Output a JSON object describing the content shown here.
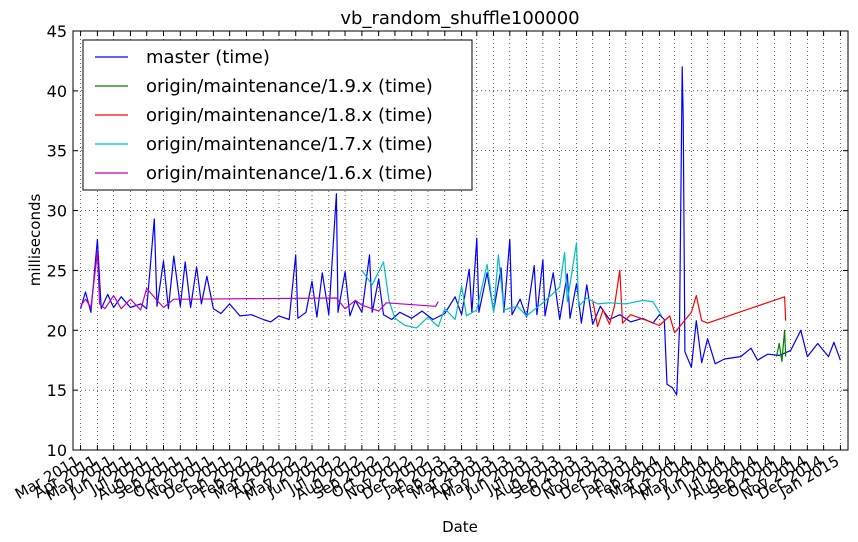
{
  "chart_data": {
    "type": "line",
    "title": "vb_random_shuffle100000",
    "xlabel": "Date",
    "ylabel": "milliseconds",
    "ylim": [
      10,
      45
    ],
    "xlim": [
      "2011-02-15",
      "2015-01-15"
    ],
    "y_ticks": [
      10,
      15,
      20,
      25,
      30,
      35,
      40,
      45
    ],
    "x_ticks": [
      {
        "date": "2011-03-01",
        "label": "Mar 2011"
      },
      {
        "date": "2011-04-01",
        "label": "Apr 2011"
      },
      {
        "date": "2011-05-01",
        "label": "May 2011"
      },
      {
        "date": "2011-06-01",
        "label": "Jun 2011"
      },
      {
        "date": "2011-07-01",
        "label": "Jul 2011"
      },
      {
        "date": "2011-08-01",
        "label": "Aug 2011"
      },
      {
        "date": "2011-09-01",
        "label": "Sep 2011"
      },
      {
        "date": "2011-10-01",
        "label": "Oct 2011"
      },
      {
        "date": "2011-11-01",
        "label": "Nov 2011"
      },
      {
        "date": "2011-12-01",
        "label": "Dec 2011"
      },
      {
        "date": "2012-01-01",
        "label": "Jan 2012"
      },
      {
        "date": "2012-02-01",
        "label": "Feb 2012"
      },
      {
        "date": "2012-03-01",
        "label": "Mar 2012"
      },
      {
        "date": "2012-04-01",
        "label": "Apr 2012"
      },
      {
        "date": "2012-05-01",
        "label": "May 2012"
      },
      {
        "date": "2012-06-01",
        "label": "Jun 2012"
      },
      {
        "date": "2012-07-01",
        "label": "Jul 2012"
      },
      {
        "date": "2012-08-01",
        "label": "Aug 2012"
      },
      {
        "date": "2012-09-01",
        "label": "Sep 2012"
      },
      {
        "date": "2012-10-01",
        "label": "Oct 2012"
      },
      {
        "date": "2012-11-01",
        "label": "Nov 2012"
      },
      {
        "date": "2012-12-01",
        "label": "Dec 2012"
      },
      {
        "date": "2013-01-01",
        "label": "Jan 2013"
      },
      {
        "date": "2013-02-01",
        "label": "Feb 2013"
      },
      {
        "date": "2013-03-01",
        "label": "Mar 2013"
      },
      {
        "date": "2013-04-01",
        "label": "Apr 2013"
      },
      {
        "date": "2013-05-01",
        "label": "May 2013"
      },
      {
        "date": "2013-06-01",
        "label": "Jun 2013"
      },
      {
        "date": "2013-07-01",
        "label": "Jul 2013"
      },
      {
        "date": "2013-08-01",
        "label": "Aug 2013"
      },
      {
        "date": "2013-09-01",
        "label": "Sep 2013"
      },
      {
        "date": "2013-10-01",
        "label": "Oct 2013"
      },
      {
        "date": "2013-11-01",
        "label": "Nov 2013"
      },
      {
        "date": "2013-12-01",
        "label": "Dec 2013"
      },
      {
        "date": "2014-01-01",
        "label": "Jan 2014"
      },
      {
        "date": "2014-02-01",
        "label": "Feb 2014"
      },
      {
        "date": "2014-03-01",
        "label": "Mar 2014"
      },
      {
        "date": "2014-04-01",
        "label": "Apr 2014"
      },
      {
        "date": "2014-05-01",
        "label": "May 2014"
      },
      {
        "date": "2014-06-01",
        "label": "Jun 2014"
      },
      {
        "date": "2014-07-01",
        "label": "Jul 2014"
      },
      {
        "date": "2014-08-01",
        "label": "Aug 2014"
      },
      {
        "date": "2014-09-01",
        "label": "Sep 2014"
      },
      {
        "date": "2014-10-01",
        "label": "Oct 2014"
      },
      {
        "date": "2014-11-01",
        "label": "Nov 2014"
      },
      {
        "date": "2014-12-01",
        "label": "Dec 2014"
      },
      {
        "date": "2015-01-01",
        "label": "Jan 2015"
      }
    ],
    "grid": true,
    "legend_position": "top-left",
    "series": [
      {
        "name": "master (time)",
        "color": "#0000ff",
        "points": [
          [
            "2011-03-01",
            21.8
          ],
          [
            "2011-03-10",
            23.2
          ],
          [
            "2011-03-20",
            21.5
          ],
          [
            "2011-04-01",
            27.6
          ],
          [
            "2011-04-08",
            21.8
          ],
          [
            "2011-04-20",
            23.0
          ],
          [
            "2011-05-01",
            21.9
          ],
          [
            "2011-05-15",
            22.8
          ],
          [
            "2011-06-01",
            21.9
          ],
          [
            "2011-06-20",
            22.2
          ],
          [
            "2011-07-01",
            21.8
          ],
          [
            "2011-07-15",
            29.3
          ],
          [
            "2011-07-20",
            22.0
          ],
          [
            "2011-08-01",
            25.8
          ],
          [
            "2011-08-10",
            21.8
          ],
          [
            "2011-08-20",
            26.2
          ],
          [
            "2011-09-01",
            22.0
          ],
          [
            "2011-09-10",
            25.7
          ],
          [
            "2011-09-20",
            21.9
          ],
          [
            "2011-10-01",
            25.3
          ],
          [
            "2011-10-10",
            22.2
          ],
          [
            "2011-10-20",
            24.5
          ],
          [
            "2011-11-01",
            21.8
          ],
          [
            "2011-11-15",
            21.4
          ],
          [
            "2011-12-01",
            22.2
          ],
          [
            "2011-12-20",
            21.2
          ],
          [
            "2012-01-10",
            21.3
          ],
          [
            "2012-02-01",
            20.9
          ],
          [
            "2012-02-15",
            20.7
          ],
          [
            "2012-03-01",
            21.2
          ],
          [
            "2012-03-20",
            20.9
          ],
          [
            "2012-04-01",
            26.3
          ],
          [
            "2012-04-05",
            21.0
          ],
          [
            "2012-04-20",
            21.5
          ],
          [
            "2012-05-01",
            24.1
          ],
          [
            "2012-05-10",
            21.1
          ],
          [
            "2012-05-20",
            24.8
          ],
          [
            "2012-06-01",
            21.3
          ],
          [
            "2012-06-15",
            31.4
          ],
          [
            "2012-06-18",
            21.5
          ],
          [
            "2012-07-01",
            24.9
          ],
          [
            "2012-07-10",
            21.2
          ],
          [
            "2012-07-20",
            22.5
          ],
          [
            "2012-08-01",
            21.5
          ],
          [
            "2012-08-15",
            26.3
          ],
          [
            "2012-08-20",
            21.5
          ],
          [
            "2012-09-01",
            24.3
          ],
          [
            "2012-09-10",
            21.3
          ],
          [
            "2012-09-25",
            20.9
          ],
          [
            "2012-10-10",
            21.5
          ],
          [
            "2012-11-01",
            21.0
          ],
          [
            "2012-11-20",
            21.6
          ],
          [
            "2012-12-10",
            20.9
          ],
          [
            "2013-01-01",
            21.4
          ],
          [
            "2013-01-20",
            22.8
          ],
          [
            "2013-02-01",
            21.3
          ],
          [
            "2013-02-15",
            25.1
          ],
          [
            "2013-02-20",
            21.5
          ],
          [
            "2013-03-01",
            27.7
          ],
          [
            "2013-03-05",
            21.5
          ],
          [
            "2013-03-20",
            24.8
          ],
          [
            "2013-04-01",
            21.6
          ],
          [
            "2013-04-15",
            25.2
          ],
          [
            "2013-04-20",
            21.5
          ],
          [
            "2013-05-01",
            27.6
          ],
          [
            "2013-05-05",
            21.3
          ],
          [
            "2013-05-20",
            22.6
          ],
          [
            "2013-06-01",
            21.1
          ],
          [
            "2013-06-15",
            25.4
          ],
          [
            "2013-06-20",
            21.3
          ],
          [
            "2013-07-01",
            25.9
          ],
          [
            "2013-07-05",
            21.2
          ],
          [
            "2013-07-20",
            24.8
          ],
          [
            "2013-08-01",
            20.9
          ],
          [
            "2013-08-15",
            24.7
          ],
          [
            "2013-08-20",
            21.0
          ],
          [
            "2013-09-01",
            23.9
          ],
          [
            "2013-09-10",
            20.6
          ],
          [
            "2013-09-20",
            23.8
          ],
          [
            "2013-10-01",
            20.5
          ],
          [
            "2013-10-15",
            22.0
          ],
          [
            "2013-11-01",
            20.9
          ],
          [
            "2013-11-20",
            21.3
          ],
          [
            "2013-12-10",
            20.7
          ],
          [
            "2014-01-01",
            21.0
          ],
          [
            "2014-01-20",
            20.6
          ],
          [
            "2014-02-01",
            21.3
          ],
          [
            "2014-02-10",
            20.9
          ],
          [
            "2014-02-15",
            15.5
          ],
          [
            "2014-02-25",
            15.2
          ],
          [
            "2014-03-05",
            14.6
          ],
          [
            "2014-03-10",
            20.1
          ],
          [
            "2014-03-15",
            42.0
          ],
          [
            "2014-03-17",
            37.9
          ],
          [
            "2014-03-20",
            18.2
          ],
          [
            "2014-04-01",
            16.9
          ],
          [
            "2014-04-10",
            20.8
          ],
          [
            "2014-04-20",
            17.3
          ],
          [
            "2014-05-01",
            19.3
          ],
          [
            "2014-05-15",
            17.2
          ],
          [
            "2014-06-01",
            17.6
          ],
          [
            "2014-07-01",
            17.8
          ],
          [
            "2014-07-20",
            18.5
          ],
          [
            "2014-08-01",
            17.5
          ],
          [
            "2014-08-20",
            18.0
          ],
          [
            "2014-09-10",
            17.9
          ],
          [
            "2014-10-01",
            18.3
          ],
          [
            "2014-10-20",
            20.0
          ],
          [
            "2014-11-01",
            17.8
          ],
          [
            "2014-11-20",
            18.9
          ],
          [
            "2014-12-10",
            17.8
          ],
          [
            "2014-12-20",
            19.0
          ],
          [
            "2015-01-01",
            17.5
          ]
        ]
      },
      {
        "name": "origin/maintenance/1.9.x (time)",
        "color": "#008000",
        "points": [
          [
            "2014-09-05",
            17.8
          ],
          [
            "2014-09-10",
            18.9
          ],
          [
            "2014-09-15",
            17.4
          ],
          [
            "2014-09-20",
            20.0
          ],
          [
            "2014-09-22",
            17.8
          ]
        ]
      },
      {
        "name": "origin/maintenance/1.8.x (time)",
        "color": "#ff0000",
        "points": [
          [
            "2013-10-01",
            22.5
          ],
          [
            "2013-10-10",
            20.3
          ],
          [
            "2013-10-20",
            21.7
          ],
          [
            "2013-11-01",
            20.5
          ],
          [
            "2013-11-10",
            22.0
          ],
          [
            "2013-11-20",
            25.0
          ],
          [
            "2013-11-25",
            20.6
          ],
          [
            "2013-12-10",
            21.3
          ],
          [
            "2014-01-10",
            20.8
          ],
          [
            "2014-02-01",
            20.4
          ],
          [
            "2014-02-20",
            21.2
          ],
          [
            "2014-03-01",
            19.8
          ],
          [
            "2014-04-01",
            21.5
          ],
          [
            "2014-04-10",
            22.9
          ],
          [
            "2014-04-20",
            20.8
          ],
          [
            "2014-05-01",
            20.6
          ],
          [
            "2014-09-20",
            22.8
          ],
          [
            "2014-09-22",
            20.8
          ]
        ]
      },
      {
        "name": "origin/maintenance/1.7.x (time)",
        "color": "#00bfbf",
        "points": [
          [
            "2012-08-01",
            25.0
          ],
          [
            "2012-08-20",
            23.8
          ],
          [
            "2012-09-10",
            25.7
          ],
          [
            "2012-09-20",
            22.5
          ],
          [
            "2012-10-01",
            21.0
          ],
          [
            "2012-10-20",
            20.4
          ],
          [
            "2012-11-10",
            20.2
          ],
          [
            "2012-12-01",
            21.1
          ],
          [
            "2012-12-20",
            20.3
          ],
          [
            "2013-01-01",
            21.8
          ],
          [
            "2013-01-20",
            20.9
          ],
          [
            "2013-02-01",
            23.7
          ],
          [
            "2013-02-10",
            21.2
          ],
          [
            "2013-03-01",
            21.7
          ],
          [
            "2013-03-20",
            25.5
          ],
          [
            "2013-04-01",
            21.5
          ],
          [
            "2013-04-10",
            26.3
          ],
          [
            "2013-04-20",
            21.7
          ],
          [
            "2013-05-15",
            22.0
          ],
          [
            "2013-06-01",
            21.2
          ],
          [
            "2013-07-01",
            22.3
          ],
          [
            "2013-08-01",
            23.6
          ],
          [
            "2013-08-10",
            26.5
          ],
          [
            "2013-08-15",
            22.4
          ],
          [
            "2013-09-01",
            27.3
          ],
          [
            "2013-09-05",
            22.0
          ],
          [
            "2013-09-20",
            22.7
          ],
          [
            "2013-10-10",
            22.2
          ],
          [
            "2013-11-01",
            22.3
          ],
          [
            "2013-12-01",
            22.2
          ],
          [
            "2014-01-01",
            22.5
          ],
          [
            "2014-01-20",
            22.4
          ],
          [
            "2014-02-05",
            21.2
          ]
        ]
      },
      {
        "name": "origin/maintenance/1.6.x (time)",
        "color": "#bf00bf",
        "points": [
          [
            "2011-03-01",
            22.0
          ],
          [
            "2011-03-10",
            22.6
          ],
          [
            "2011-03-20",
            21.9
          ],
          [
            "2011-04-01",
            26.5
          ],
          [
            "2011-04-05",
            22.2
          ],
          [
            "2011-04-15",
            21.8
          ],
          [
            "2011-05-01",
            22.9
          ],
          [
            "2011-05-15",
            21.8
          ],
          [
            "2011-06-01",
            22.6
          ],
          [
            "2011-06-20",
            21.7
          ],
          [
            "2011-07-01",
            23.5
          ],
          [
            "2011-07-20",
            22.5
          ],
          [
            "2011-08-01",
            21.9
          ],
          [
            "2011-08-20",
            22.6
          ],
          [
            "2011-09-15",
            22.6
          ],
          [
            "2012-06-15",
            22.7
          ],
          [
            "2012-07-01",
            21.8
          ],
          [
            "2012-07-20",
            22.5
          ],
          [
            "2012-08-01",
            22.1
          ],
          [
            "2012-09-01",
            21.6
          ],
          [
            "2012-09-15",
            22.3
          ],
          [
            "2012-12-15",
            22.0
          ],
          [
            "2012-12-20",
            22.4
          ]
        ]
      }
    ]
  }
}
